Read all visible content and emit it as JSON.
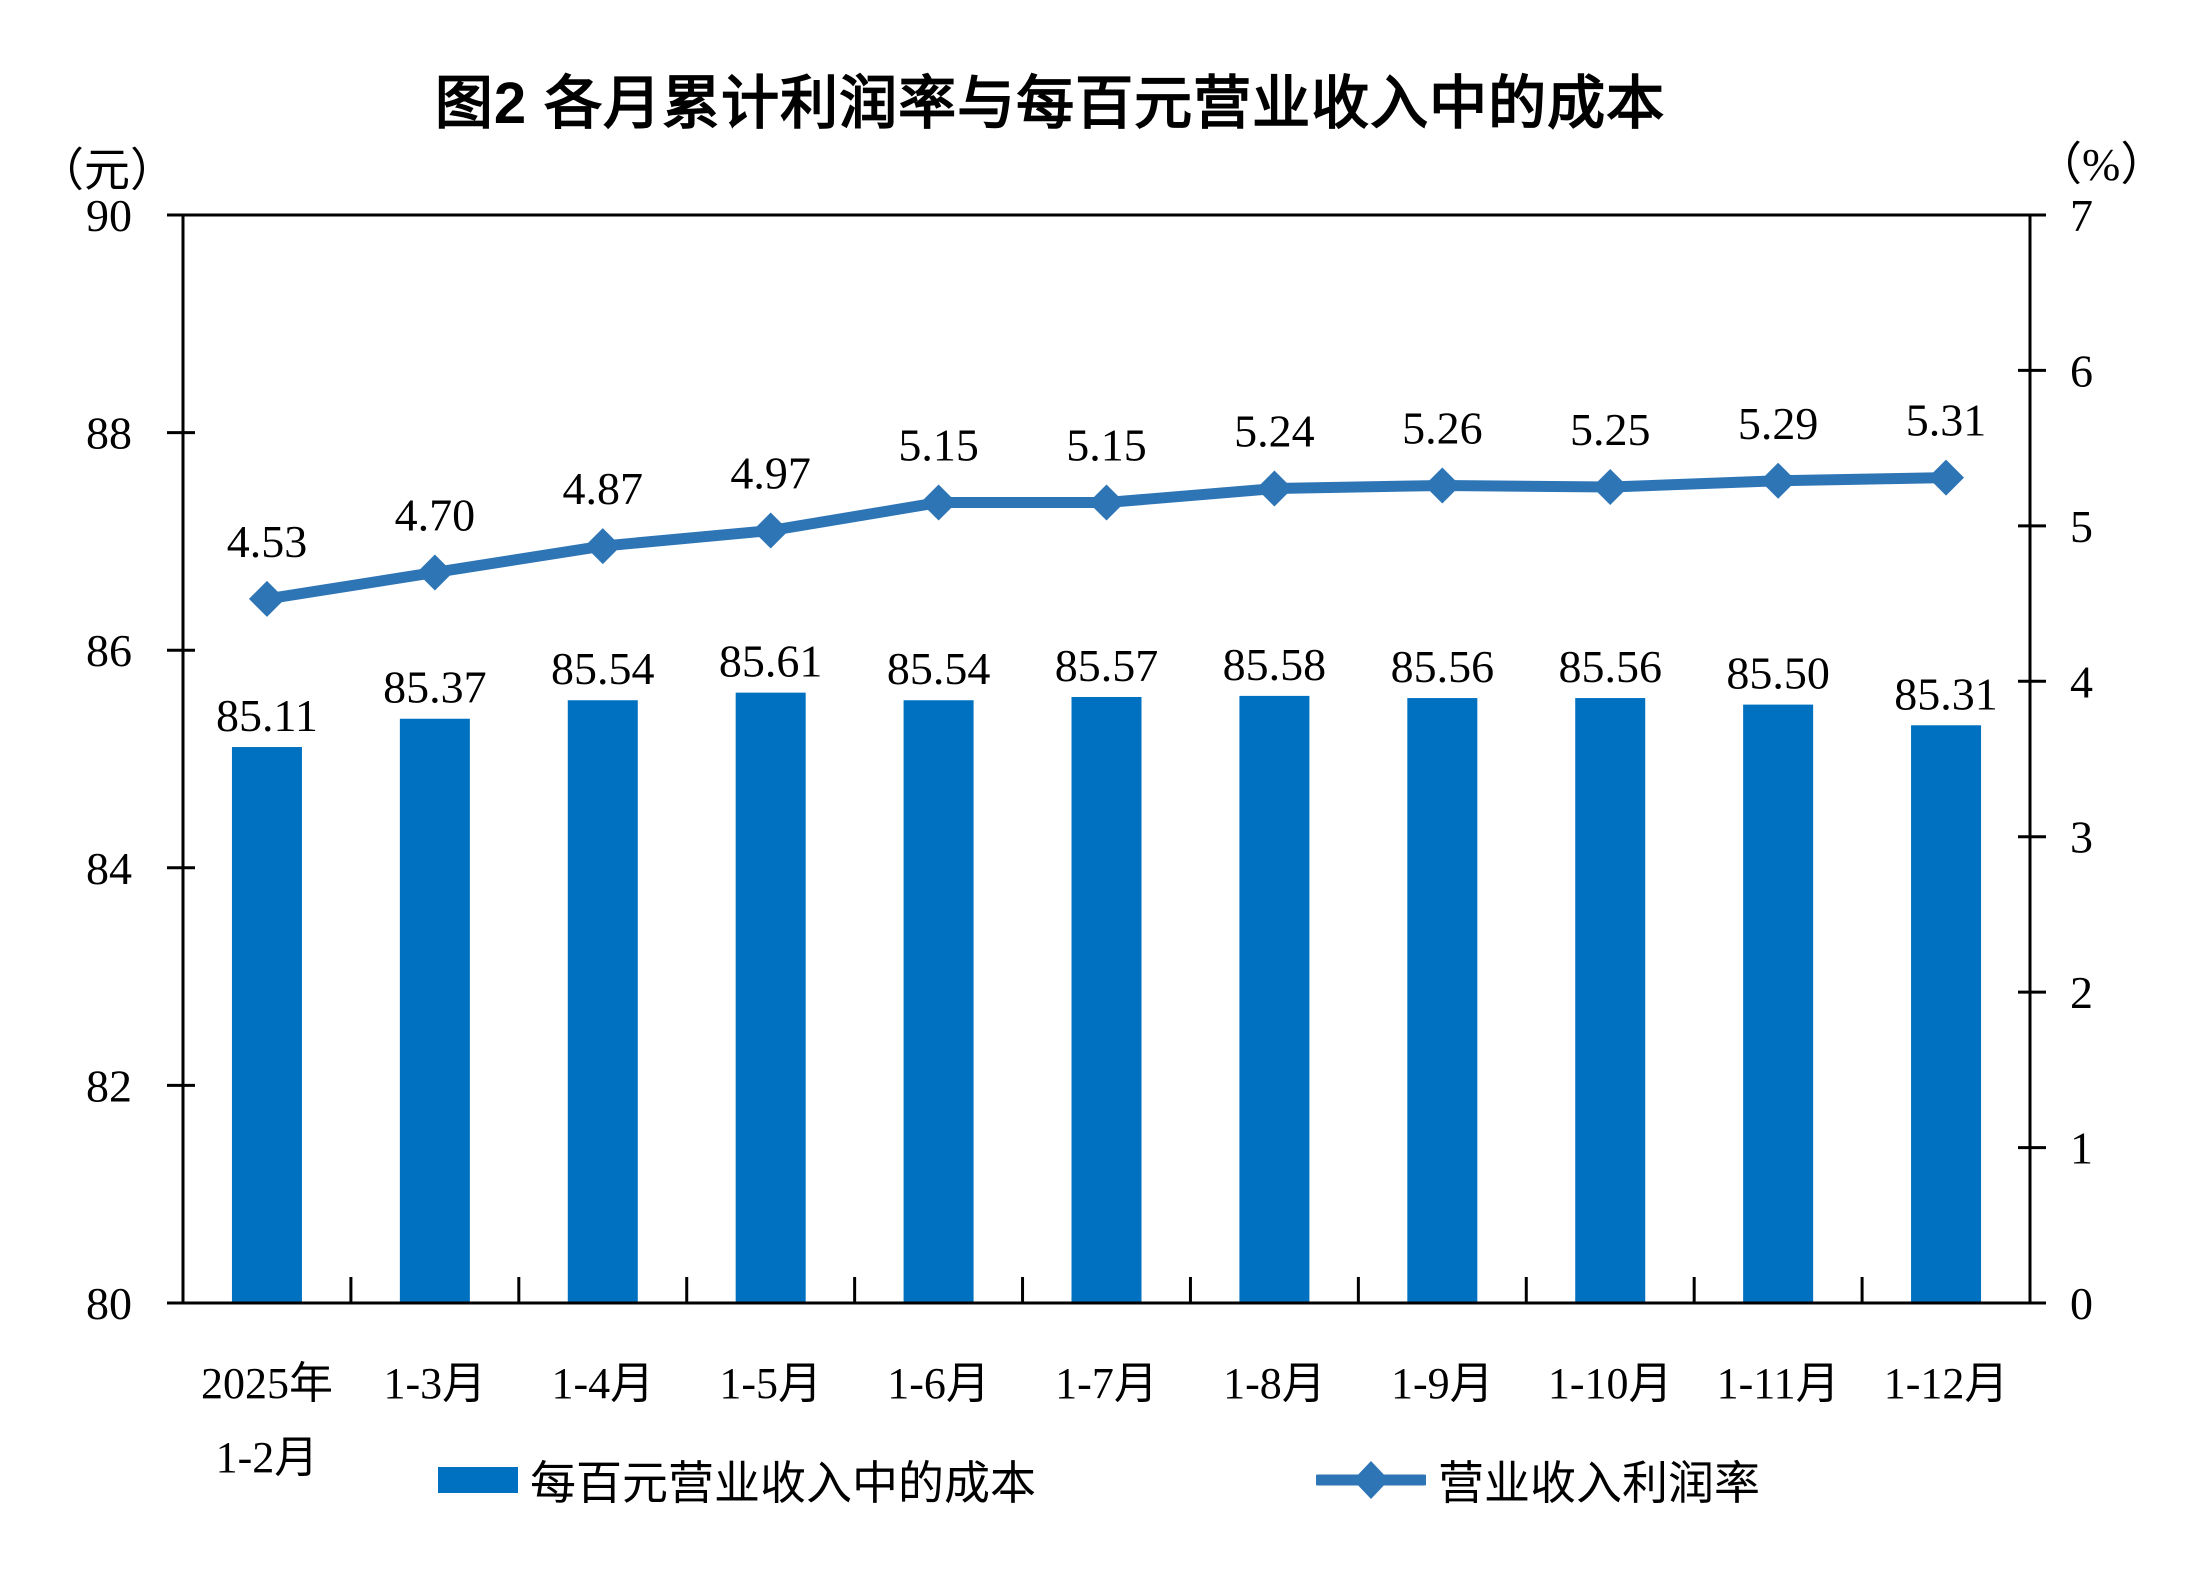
{
  "chart_data": {
    "type": "combo-bar-line",
    "title": "图2 各月累计利润率与每百元营业收入中的成本",
    "categories": [
      "2025年 1-2月",
      "1-3月",
      "1-4月",
      "1-5月",
      "1-6月",
      "1-7月",
      "1-8月",
      "1-9月",
      "1-10月",
      "1-11月",
      "1-12月"
    ],
    "series": [
      {
        "name": "每百元营业收入中的成本",
        "type": "bar",
        "axis": "left",
        "color": "#0070C0",
        "values": [
          85.11,
          85.37,
          85.54,
          85.61,
          85.54,
          85.57,
          85.58,
          85.56,
          85.56,
          85.5,
          85.31
        ],
        "labels": [
          "85.11",
          "85.37",
          "85.54",
          "85.61",
          "85.54",
          "85.57",
          "85.58",
          "85.56",
          "85.56",
          "85.50",
          "85.31"
        ]
      },
      {
        "name": "营业收入利润率",
        "type": "line",
        "axis": "right",
        "color": "#2E75B6",
        "marker": "diamond",
        "values": [
          4.53,
          4.7,
          4.87,
          4.97,
          5.15,
          5.15,
          5.24,
          5.26,
          5.25,
          5.29,
          5.31
        ],
        "labels": [
          "4.53",
          "4.70",
          "4.87",
          "4.97",
          "5.15",
          "5.15",
          "5.24",
          "5.26",
          "5.25",
          "5.29",
          "5.31"
        ]
      }
    ],
    "left_axis": {
      "unit": "（元）",
      "min": 80,
      "max": 90,
      "ticks": [
        80,
        82,
        84,
        86,
        88,
        90
      ]
    },
    "right_axis": {
      "unit": "（%）",
      "min": 0,
      "max": 7,
      "ticks": [
        0,
        1,
        2,
        3,
        4,
        5,
        6,
        7
      ]
    },
    "grid": false,
    "data_labels": true,
    "legend_position": "bottom"
  }
}
